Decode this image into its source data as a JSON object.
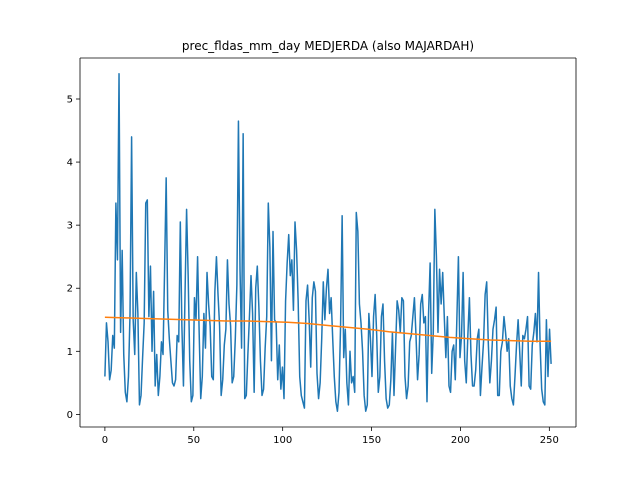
{
  "chart_data": {
    "type": "line",
    "title": "prec_fldas_mm_day MEDJERDA (also MAJARDAH)",
    "xlabel": "",
    "ylabel": "",
    "xlim": [
      -14,
      265
    ],
    "ylim": [
      -0.2,
      5.65
    ],
    "xticks": [
      0,
      50,
      100,
      150,
      200,
      250
    ],
    "yticks": [
      0,
      1,
      2,
      3,
      4,
      5
    ],
    "grid": false,
    "series": [
      {
        "color": "#1f77b4",
        "values": [
          0.6,
          1.45,
          1.15,
          0.55,
          0.7,
          1.25,
          1.05,
          3.35,
          2.45,
          5.4,
          1.3,
          2.6,
          0.95,
          0.35,
          0.2,
          0.6,
          1.6,
          4.4,
          1.5,
          0.95,
          2.25,
          1.6,
          0.15,
          0.3,
          0.9,
          1.45,
          3.35,
          3.4,
          1.55,
          2.35,
          1.0,
          1.95,
          0.45,
          0.95,
          0.3,
          0.6,
          1.15,
          0.95,
          2.3,
          3.75,
          1.65,
          1.2,
          0.85,
          0.5,
          0.45,
          0.55,
          1.25,
          1.15,
          3.05,
          1.4,
          0.45,
          1.9,
          3.25,
          2.2,
          0.85,
          0.2,
          0.3,
          1.85,
          1.5,
          2.5,
          1.3,
          0.25,
          0.6,
          1.6,
          1.05,
          2.25,
          1.75,
          1.4,
          0.6,
          0.55,
          1.95,
          2.5,
          1.9,
          1.4,
          0.3,
          0.55,
          1.1,
          1.35,
          2.45,
          1.75,
          1.4,
          0.5,
          0.6,
          1.2,
          2.05,
          4.65,
          2.3,
          1.05,
          4.45,
          0.25,
          0.3,
          0.95,
          1.55,
          2.2,
          1.6,
          0.35,
          2.0,
          2.35,
          1.7,
          0.85,
          0.3,
          0.4,
          1.05,
          1.55,
          3.35,
          2.65,
          0.85,
          2.9,
          1.5,
          1.45,
          0.55,
          1.1,
          0.4,
          0.75,
          0.25,
          1.8,
          2.4,
          2.85,
          2.2,
          2.45,
          1.65,
          3.05,
          2.6,
          1.8,
          0.6,
          0.3,
          0.2,
          0.1,
          1.8,
          2.05,
          1.5,
          0.75,
          1.85,
          2.1,
          1.95,
          0.65,
          0.25,
          0.5,
          1.2,
          2.1,
          1.5,
          2.0,
          2.3,
          1.6,
          1.85,
          1.2,
          0.6,
          0.2,
          0.05,
          0.35,
          1.4,
          3.15,
          0.9,
          1.35,
          0.5,
          0.15,
          1.0,
          0.5,
          0.6,
          0.35,
          3.2,
          2.9,
          1.75,
          1.45,
          1.0,
          0.3,
          0.05,
          0.15,
          1.6,
          1.2,
          0.6,
          1.55,
          1.9,
          1.25,
          0.35,
          0.6,
          1.55,
          1.75,
          0.85,
          0.25,
          0.1,
          0.15,
          0.55,
          1.3,
          0.3,
          1.05,
          1.8,
          1.65,
          1.3,
          1.85,
          1.8,
          0.6,
          0.25,
          0.45,
          1.15,
          1.25,
          1.55,
          1.85,
          1.25,
          0.55,
          0.95,
          1.75,
          1.9,
          1.45,
          1.55,
          0.2,
          1.6,
          2.4,
          0.65,
          1.3,
          3.25,
          2.5,
          1.3,
          2.3,
          1.75,
          2.25,
          1.55,
          0.9,
          1.55,
          0.45,
          0.35,
          1.0,
          1.1,
          0.55,
          1.5,
          2.5,
          0.9,
          1.25,
          2.25,
          0.85,
          0.5,
          1.25,
          1.85,
          0.95,
          0.45,
          0.45,
          0.7,
          1.2,
          1.35,
          0.3,
          0.75,
          1.15,
          1.9,
          2.1,
          1.15,
          0.5,
          0.85,
          1.35,
          1.5,
          1.7,
          0.3,
          0.3,
          1.0,
          1.15,
          1.55,
          1.3,
          1.0,
          1.2,
          0.45,
          0.25,
          0.15,
          0.6,
          1.1,
          1.5,
          1.0,
          0.45,
          1.25,
          1.2,
          1.35,
          1.55,
          0.45,
          0.4,
          1.1,
          1.3,
          1.6,
          1.15,
          2.25,
          1.1,
          0.4,
          0.2,
          0.15,
          1.5,
          0.6,
          1.35,
          0.8
        ]
      },
      {
        "color": "#ff7f0e",
        "values": [
          1.54,
          1.53,
          1.52,
          1.51,
          1.5,
          1.49,
          1.48,
          1.48,
          1.47,
          1.46,
          1.44,
          1.41,
          1.38,
          1.35,
          1.31,
          1.28,
          1.25,
          1.22,
          1.2,
          1.18,
          1.17,
          1.16,
          1.16
        ]
      }
    ]
  }
}
